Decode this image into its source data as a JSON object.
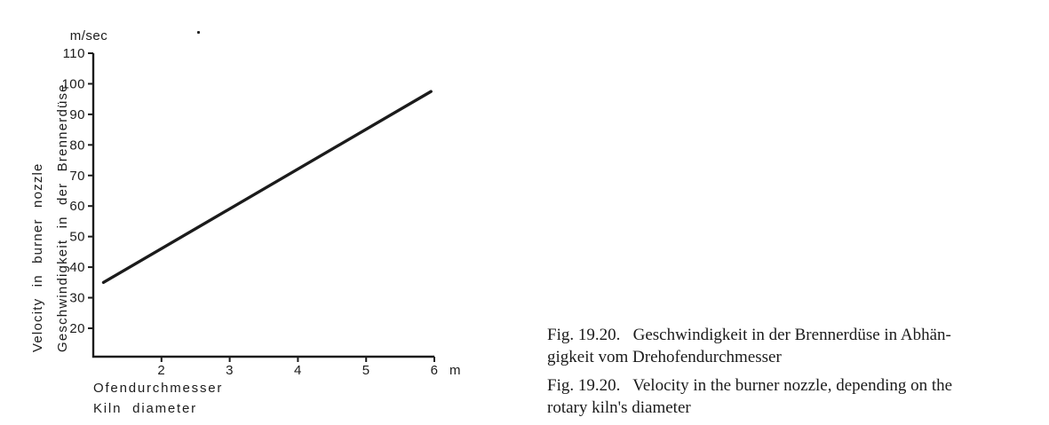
{
  "figure": {
    "caption_de": {
      "lines": [
        "Fig. 19.20.   Geschwindigkeit in der Brennerdüse in Abhän-",
        "gigkeit vom Drehofendurchmesser"
      ]
    },
    "caption_en": {
      "lines": [
        "Fig. 19.20.   Velocity in the burner nozzle, depending on the",
        "rotary kiln's diameter"
      ]
    }
  },
  "chart_data": {
    "type": "line",
    "title": "",
    "grid": false,
    "legend": false,
    "ink_color": "#1c1c1c",
    "line_color": "#1b1b1b",
    "x_axis": {
      "label_de": "Ofendurchmesser",
      "label_en": "Kiln diameter",
      "unit": "m",
      "ticks": [
        2,
        3,
        4,
        5,
        6
      ],
      "lim": [
        1,
        6
      ]
    },
    "y_axis": {
      "label_en": "Velocity in burner nozzle",
      "label_de": "Geschwindigkeit in der Brennerdüse",
      "unit": "m/sec",
      "ticks": [
        20,
        30,
        40,
        50,
        60,
        70,
        80,
        90,
        100,
        110
      ],
      "lim": [
        10.7,
        110
      ]
    },
    "series": [
      {
        "name": "nozzle-velocity-vs-kiln-diameter",
        "x": [
          1.15,
          5.95
        ],
        "y": [
          35,
          97.5
        ]
      }
    ]
  }
}
